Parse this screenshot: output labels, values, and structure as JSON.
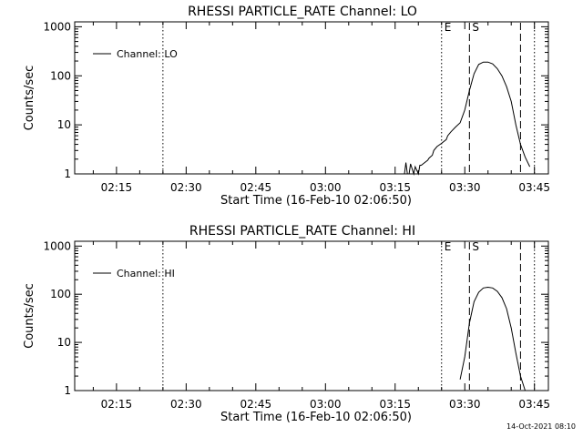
{
  "timestamp": "14-Oct-2021 08:10",
  "chart_data": [
    {
      "type": "line",
      "title": "RHESSI PARTICLE_RATE Channel: LO",
      "xlabel": "Start Time (16-Feb-10 02:06:50)",
      "ylabel": "Counts/sec",
      "yscale": "log",
      "ylim": [
        1,
        1000
      ],
      "xlim": [
        "02:06",
        "03:48"
      ],
      "x_ticks": [
        "02:15",
        "02:30",
        "02:45",
        "03:00",
        "03:15",
        "03:30",
        "03:45"
      ],
      "y_ticks": [
        "1",
        "10",
        "100",
        "1000"
      ],
      "legend": {
        "label": "Channel: LO",
        "position": "top-left"
      },
      "markers": [
        {
          "time": "02:25",
          "style": "dotted",
          "label": ""
        },
        {
          "time": "03:25",
          "style": "dotted",
          "label": "E"
        },
        {
          "time": "03:31",
          "style": "dashed",
          "label": "S"
        },
        {
          "time": "03:42",
          "style": "dashed",
          "label": ""
        },
        {
          "time": "03:45",
          "style": "dotted",
          "label": ""
        }
      ],
      "series": [
        {
          "name": "Channel: LO",
          "x": [
            "03:17",
            "03:17",
            "03:17",
            "03:18",
            "03:18",
            "03:19",
            "03:19",
            "03:20",
            "03:20",
            "03:20",
            "03:21",
            "03:22",
            "03:22",
            "03:23",
            "03:23",
            "03:24",
            "03:25",
            "03:26",
            "03:26",
            "03:27",
            "03:28",
            "03:29",
            "03:30",
            "03:31",
            "03:32",
            "03:33",
            "03:34",
            "03:35",
            "03:36",
            "03:37",
            "03:38",
            "03:39",
            "03:40",
            "03:41",
            "03:42",
            "03:43",
            "03:44"
          ],
          "y": [
            1,
            1.7,
            1,
            1,
            1.6,
            1,
            1.4,
            1,
            1.5,
            1.5,
            1.6,
            1.9,
            2.1,
            2.4,
            3,
            3.6,
            4.2,
            5,
            6,
            7.2,
            9,
            11,
            20,
            50,
            110,
            170,
            190,
            190,
            175,
            140,
            100,
            60,
            30,
            10,
            4,
            2.2,
            1.4
          ]
        }
      ]
    },
    {
      "type": "line",
      "title": "RHESSI PARTICLE_RATE Channel: HI",
      "xlabel": "Start Time (16-Feb-10 02:06:50)",
      "ylabel": "Counts/sec",
      "yscale": "log",
      "ylim": [
        1,
        1000
      ],
      "xlim": [
        "02:06",
        "03:48"
      ],
      "x_ticks": [
        "02:15",
        "02:30",
        "02:45",
        "03:00",
        "03:15",
        "03:30",
        "03:45"
      ],
      "y_ticks": [
        "1",
        "10",
        "100",
        "1000"
      ],
      "legend": {
        "label": "Channel: HI",
        "position": "top-left"
      },
      "markers": [
        {
          "time": "02:25",
          "style": "dotted",
          "label": ""
        },
        {
          "time": "03:25",
          "style": "dotted",
          "label": "E"
        },
        {
          "time": "03:31",
          "style": "dashed",
          "label": "S"
        },
        {
          "time": "03:42",
          "style": "dashed",
          "label": ""
        },
        {
          "time": "03:45",
          "style": "dotted",
          "label": ""
        }
      ],
      "series": [
        {
          "name": "Channel: HI",
          "x": [
            "03:29",
            "03:30",
            "03:31",
            "03:32",
            "03:33",
            "03:34",
            "03:35",
            "03:36",
            "03:37",
            "03:38",
            "03:39",
            "03:40",
            "03:41",
            "03:42",
            "03:43"
          ],
          "y": [
            1.7,
            5,
            25,
            70,
            110,
            135,
            140,
            135,
            115,
            85,
            50,
            20,
            6,
            2,
            1
          ]
        }
      ]
    }
  ]
}
